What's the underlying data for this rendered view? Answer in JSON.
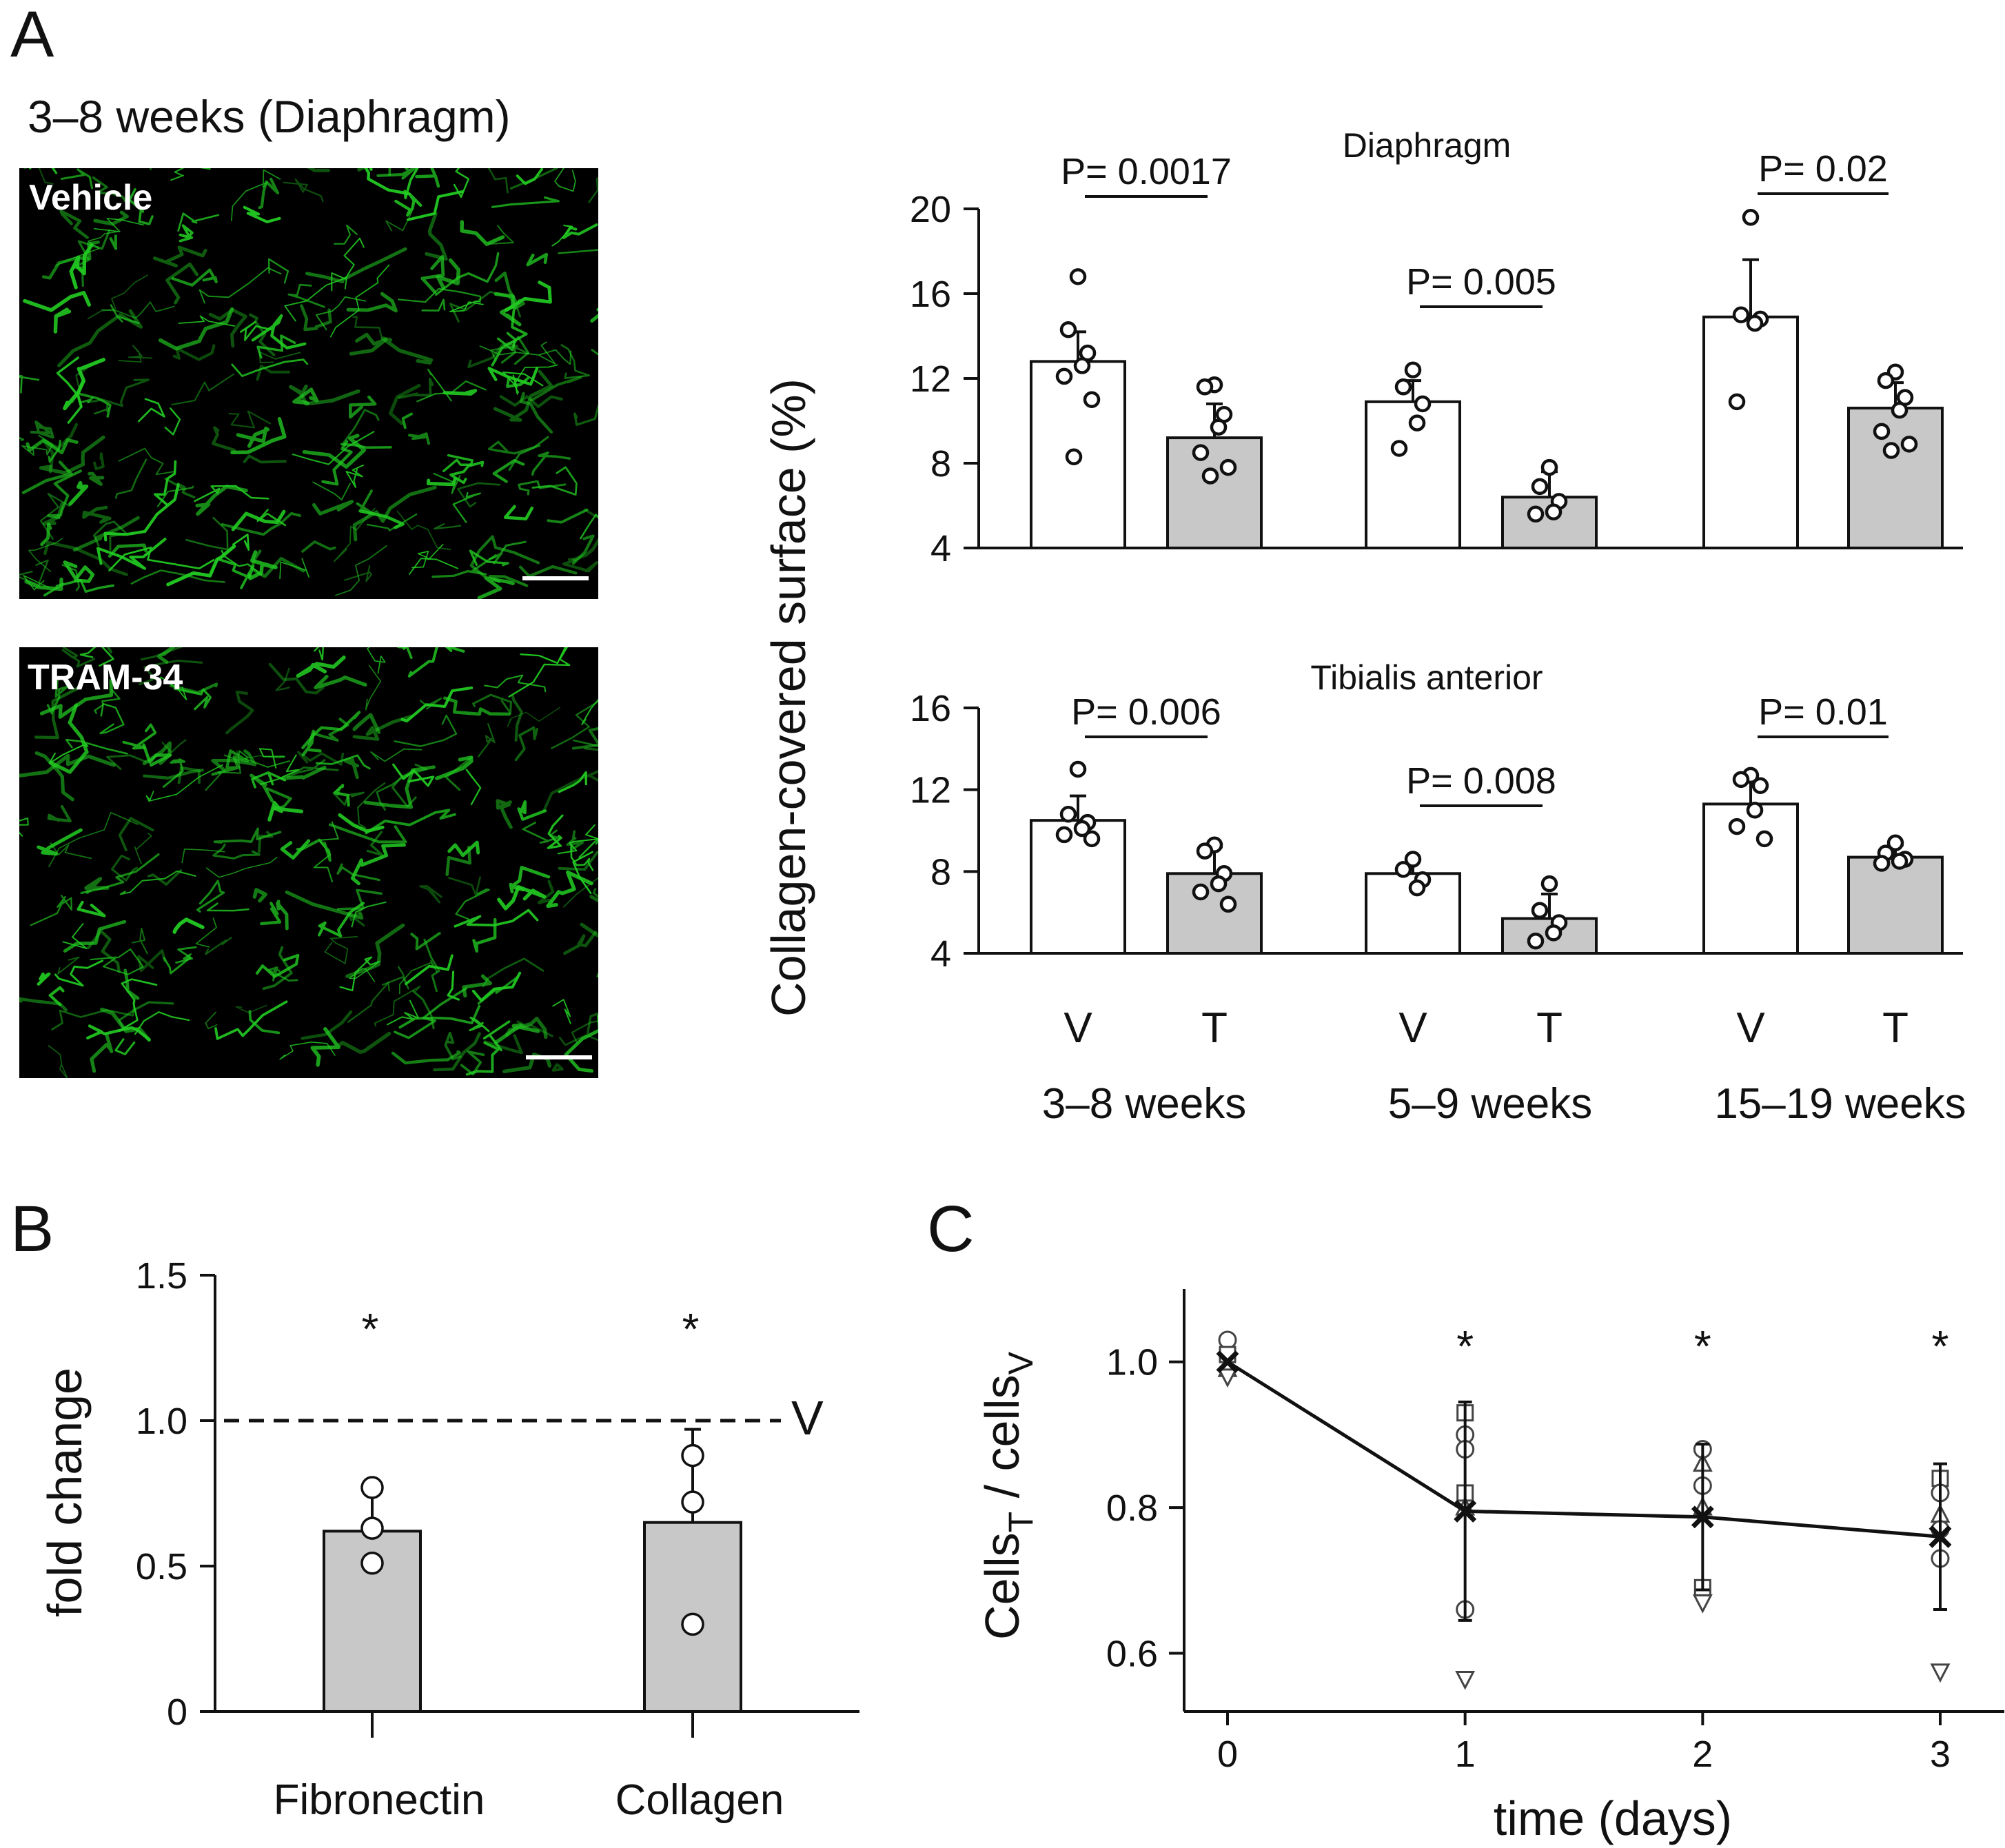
{
  "panel_labels": {
    "a": "A",
    "b": "B",
    "c": "C"
  },
  "colors": {
    "vehicle_bar": "#ffffff",
    "tram_bar": "#c8c8c8",
    "ink": "#111111",
    "micrograph_bg": "#000000",
    "micrograph_fiber": "#22cc22"
  },
  "panel_a": {
    "heading": "3–8 weeks (Diaphragm)",
    "micrographs": [
      {
        "label": "Vehicle"
      },
      {
        "label": "TRAM-34"
      }
    ],
    "y_axis_title": "Collagen-covered surface (%)",
    "category_labels": [
      "V",
      "T",
      "V",
      "T",
      "V",
      "T"
    ],
    "group_labels": [
      "3–8 weeks",
      "5–9 weeks",
      "15–19 weeks"
    ]
  },
  "chart_data": [
    {
      "id": "diaphragm",
      "type": "bar",
      "title": "Diaphragm",
      "ylabel": "Collagen-covered surface (%)",
      "ylim": [
        4,
        20
      ],
      "yticks": [
        4,
        8,
        12,
        16,
        20
      ],
      "categories": [
        "V",
        "T",
        "V",
        "T",
        "V",
        "T"
      ],
      "groups": [
        "3–8 weeks",
        "3–8 weeks",
        "5–9 weeks",
        "5–9 weeks",
        "15–19 weeks",
        "15–19 weeks"
      ],
      "series": [
        {
          "name": "mean",
          "values": [
            12.8,
            9.2,
            10.9,
            6.4,
            14.9,
            10.6
          ]
        }
      ],
      "errors": [
        1.4,
        1.6,
        1.0,
        1.2,
        2.7,
        1.2
      ],
      "points": [
        [
          16.8,
          14.3,
          13.2,
          12.6,
          12.1,
          11.0,
          8.3
        ],
        [
          11.7,
          11.6,
          10.3,
          9.7,
          8.5,
          7.8,
          7.4
        ],
        [
          12.4,
          11.6,
          10.8,
          9.9,
          8.7
        ],
        [
          7.8,
          6.9,
          6.2,
          5.7,
          5.6
        ],
        [
          19.6,
          15.0,
          14.8,
          14.6,
          10.9
        ],
        [
          12.3,
          11.9,
          11.1,
          10.5,
          9.5,
          8.9,
          8.6
        ]
      ],
      "pvalues": [
        "P= 0.0017",
        "P= 0.005",
        "P= 0.02"
      ]
    },
    {
      "id": "tibialis",
      "type": "bar",
      "title": "Tibialis anterior",
      "ylabel": "Collagen-covered surface (%)",
      "ylim": [
        4,
        16
      ],
      "yticks": [
        4,
        8,
        12,
        16
      ],
      "categories": [
        "V",
        "T",
        "V",
        "T",
        "V",
        "T"
      ],
      "groups": [
        "3–8 weeks",
        "3–8 weeks",
        "5–9 weeks",
        "5–9 weeks",
        "15–19 weeks",
        "15–19 weeks"
      ],
      "series": [
        {
          "name": "mean",
          "values": [
            10.5,
            7.9,
            7.9,
            5.7,
            11.3,
            8.7
          ]
        }
      ],
      "errors": [
        1.2,
        1.3,
        0.7,
        1.2,
        1.1,
        0.6
      ],
      "points": [
        [
          13.0,
          10.8,
          10.4,
          10.1,
          9.8,
          9.6
        ],
        [
          9.3,
          9.0,
          7.9,
          7.4,
          7.0,
          6.4
        ],
        [
          8.6,
          8.1,
          7.6,
          7.2
        ],
        [
          7.4,
          6.1,
          5.5,
          5.0,
          4.6
        ],
        [
          12.7,
          12.5,
          12.2,
          11.0,
          10.2,
          9.6
        ],
        [
          9.4,
          8.9,
          8.6,
          8.5,
          8.4
        ]
      ],
      "pvalues": [
        "P= 0.006",
        "P= 0.008",
        "P= 0.01"
      ]
    },
    {
      "id": "fold_change",
      "type": "bar",
      "title": "",
      "ylabel": "fold change",
      "ylim": [
        0,
        1.5
      ],
      "yticks": [
        "0",
        "0.5",
        "1.0",
        "1.5"
      ],
      "categories": [
        "Fibronectin",
        "Collagen"
      ],
      "series": [
        {
          "name": "mean",
          "values": [
            0.62,
            0.65
          ]
        }
      ],
      "errors": [
        0.14,
        0.32
      ],
      "points": [
        [
          0.77,
          0.63,
          0.51
        ],
        [
          0.88,
          0.72,
          0.3
        ]
      ],
      "reference_line": {
        "value": 1.0,
        "label": "V"
      },
      "significance": [
        "*",
        "*"
      ]
    },
    {
      "id": "cells_ratio",
      "type": "line",
      "title": "",
      "xlabel": "time (days)",
      "ylabel_main": "Cells",
      "ylabel_sub1": "T",
      "ylabel_mid": " / cells",
      "ylabel_sub2": "V",
      "xlim": [
        0,
        3
      ],
      "xticks": [
        0,
        1,
        2,
        3
      ],
      "ylim": [
        0.52,
        1.1
      ],
      "yticks": [
        "0.6",
        "0.8",
        "1.0"
      ],
      "x": [
        0,
        1,
        2,
        3
      ],
      "series": [
        {
          "name": "mean",
          "values": [
            1.0,
            0.795,
            0.787,
            0.76
          ]
        }
      ],
      "errors": [
        0.0,
        0.15,
        0.1,
        0.1
      ],
      "scatter": [
        {
          "x": 0,
          "y": 1.03,
          "marker": "circle"
        },
        {
          "x": 0,
          "y": 1.01,
          "marker": "square"
        },
        {
          "x": 0,
          "y": 0.99,
          "marker": "triangle-up"
        },
        {
          "x": 0,
          "y": 0.98,
          "marker": "triangle-down"
        },
        {
          "x": 1,
          "y": 0.93,
          "marker": "square"
        },
        {
          "x": 1,
          "y": 0.9,
          "marker": "circle"
        },
        {
          "x": 1,
          "y": 0.88,
          "marker": "circle"
        },
        {
          "x": 1,
          "y": 0.82,
          "marker": "square"
        },
        {
          "x": 1,
          "y": 0.8,
          "marker": "triangle-up"
        },
        {
          "x": 1,
          "y": 0.66,
          "marker": "circle"
        },
        {
          "x": 1,
          "y": 0.565,
          "marker": "triangle-down"
        },
        {
          "x": 2,
          "y": 0.88,
          "marker": "circle"
        },
        {
          "x": 2,
          "y": 0.86,
          "marker": "triangle-up"
        },
        {
          "x": 2,
          "y": 0.83,
          "marker": "circle"
        },
        {
          "x": 2,
          "y": 0.8,
          "marker": "triangle-up"
        },
        {
          "x": 2,
          "y": 0.69,
          "marker": "square"
        },
        {
          "x": 2,
          "y": 0.67,
          "marker": "triangle-down"
        },
        {
          "x": 3,
          "y": 0.84,
          "marker": "square"
        },
        {
          "x": 3,
          "y": 0.82,
          "marker": "circle"
        },
        {
          "x": 3,
          "y": 0.79,
          "marker": "triangle-up"
        },
        {
          "x": 3,
          "y": 0.77,
          "marker": "circle"
        },
        {
          "x": 3,
          "y": 0.73,
          "marker": "circle"
        },
        {
          "x": 3,
          "y": 0.575,
          "marker": "triangle-down"
        }
      ],
      "significance": [
        "",
        "*",
        "*",
        "*"
      ]
    }
  ]
}
